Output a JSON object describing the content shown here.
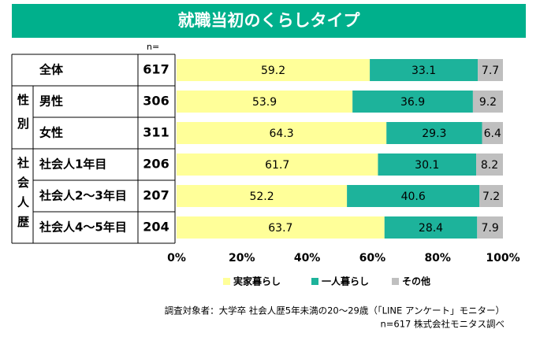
{
  "chart_data": {
    "type": "stacked-bar-horizontal",
    "title": "就職当初のくらしタイプ",
    "n_label": "n=",
    "categories": [
      "全体",
      "男性",
      "女性",
      "社会人1年目",
      "社会人2～3年目",
      "社会人4～5年目"
    ],
    "groups": [
      null,
      "性別",
      "性別",
      "社会人歴",
      "社会人歴",
      "社会人歴"
    ],
    "n": [
      617,
      306,
      311,
      206,
      207,
      204
    ],
    "series": [
      {
        "name": "実家暮らし",
        "color": "#ffff99",
        "values": [
          59.2,
          53.9,
          64.3,
          61.7,
          52.2,
          63.7
        ]
      },
      {
        "name": "一人暮らし",
        "color": "#1db39b",
        "values": [
          33.1,
          36.9,
          29.3,
          30.1,
          40.6,
          28.4
        ]
      },
      {
        "name": "その他",
        "color": "#bfbfbf",
        "values": [
          7.7,
          9.2,
          6.4,
          8.2,
          7.2,
          7.9
        ]
      }
    ],
    "xlim": [
      0,
      100
    ],
    "xticks": [
      {
        "value": 0,
        "label": "0%"
      },
      {
        "value": 20,
        "label": "20%"
      },
      {
        "value": 40,
        "label": "40%"
      },
      {
        "value": 60,
        "label": "60%"
      },
      {
        "value": 80,
        "label": "80%"
      },
      {
        "value": 100,
        "label": "100%"
      }
    ],
    "notes": [
      "調査対象者：大学卒 社会人歴5年未満の20～29歳（「LINE アンケート」モニター）",
      "n=617 株式会社モニタス調べ"
    ]
  }
}
